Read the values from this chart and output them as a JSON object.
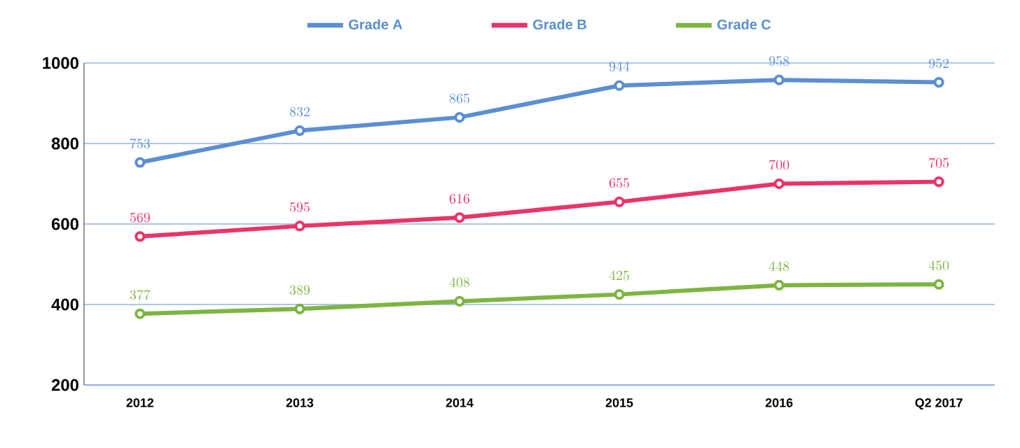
{
  "chart_data": {
    "type": "line",
    "categories": [
      "2012",
      "2013",
      "2014",
      "2015",
      "2016",
      "Q2 2017"
    ],
    "series": [
      {
        "name": "Grade A",
        "color": "#5b8fd1",
        "values": [
          753,
          832,
          865,
          944,
          958,
          952
        ]
      },
      {
        "name": "Grade B",
        "color": "#ea3468",
        "values": [
          569,
          595,
          616,
          655,
          700,
          705
        ]
      },
      {
        "name": "Grade C",
        "color": "#7db541",
        "values": [
          377,
          389,
          408,
          425,
          448,
          450
        ]
      }
    ],
    "ylim": [
      200,
      1000
    ],
    "yticks": [
      200,
      400,
      600,
      800,
      1000
    ],
    "grid": "y",
    "legend": "top",
    "marker": "circle",
    "line_style": "solid",
    "data_labels": true
  }
}
